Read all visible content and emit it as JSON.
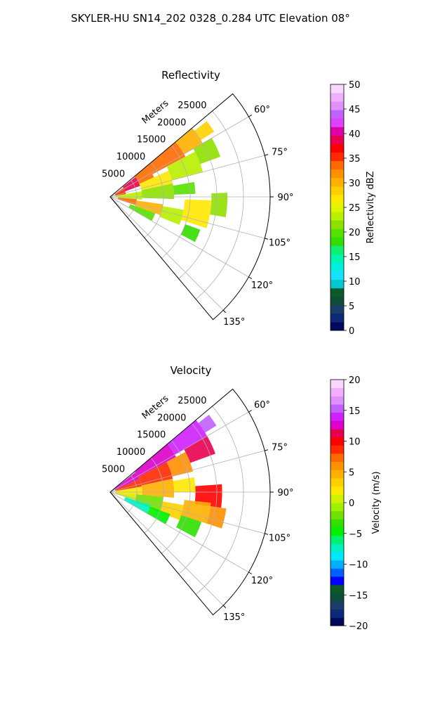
{
  "title": "SKYLER-HU  SN14_202  0328_0.284 UTC Elevation 08°",
  "chart_data": [
    {
      "type": "heatmap",
      "projection": "polar-sector",
      "title": "Reflectivity",
      "radial_label": "Meters",
      "radial_ticks": [
        "5000",
        "10000",
        "15000",
        "20000",
        "25000"
      ],
      "radial_range": [
        0,
        30000
      ],
      "angle_range_deg": [
        50,
        140
      ],
      "angle_ticks": [
        "60°",
        "75°",
        "90°",
        "105°",
        "120°",
        "135°"
      ],
      "grid": true,
      "colorbar": {
        "label": "Reflectivity dBZ",
        "range": [
          0,
          50
        ],
        "ticks": [
          "0",
          "5",
          "10",
          "15",
          "20",
          "25",
          "30",
          "35",
          "40",
          "45",
          "50"
        ],
        "colors": [
          "#000a5a",
          "#0c2a78",
          "#1a3d6a",
          "#0f4e3a",
          "#0a5a2a",
          "#00c8d0",
          "#18e0ff",
          "#00f0e0",
          "#00f5b0",
          "#10f070",
          "#33dd00",
          "#55e000",
          "#8ee000",
          "#b8f000",
          "#e2f500",
          "#ffe800",
          "#ffd000",
          "#ffb000",
          "#ff9000",
          "#ff6a00",
          "#ff2a00",
          "#ff0000",
          "#e80050",
          "#dd00aa",
          "#e040ff",
          "#c060ff",
          "#e090ff",
          "#f0b0ff",
          "#f8d8ff"
        ]
      },
      "cells": [
        {
          "range": [
            1000,
            3000
          ],
          "angle": [
            56,
            80
          ],
          "value": 36
        },
        {
          "range": [
            3000,
            6000
          ],
          "angle": [
            52,
            70
          ],
          "value": 38
        },
        {
          "range": [
            6000,
            9000
          ],
          "angle": [
            50,
            66
          ],
          "value": 34
        },
        {
          "range": [
            9000,
            12000
          ],
          "angle": [
            50,
            62
          ],
          "value": 33
        },
        {
          "range": [
            12000,
            16000
          ],
          "angle": [
            50,
            62
          ],
          "value": 34
        },
        {
          "range": [
            16000,
            20000
          ],
          "angle": [
            50,
            60
          ],
          "value": 30
        },
        {
          "range": [
            20000,
            23000
          ],
          "angle": [
            52,
            58
          ],
          "value": 28
        },
        {
          "range": [
            6000,
            12000
          ],
          "angle": [
            66,
            78
          ],
          "value": 26
        },
        {
          "range": [
            12000,
            18000
          ],
          "angle": [
            62,
            75
          ],
          "value": 24
        },
        {
          "range": [
            18000,
            22000
          ],
          "angle": [
            60,
            70
          ],
          "value": 22
        },
        {
          "range": [
            1000,
            6000
          ],
          "angle": [
            80,
            95
          ],
          "value": 24
        },
        {
          "range": [
            6000,
            12000
          ],
          "angle": [
            78,
            92
          ],
          "value": 22
        },
        {
          "range": [
            12000,
            16000
          ],
          "angle": [
            80,
            88
          ],
          "value": 20
        },
        {
          "range": [
            1500,
            5000
          ],
          "angle": [
            95,
            108
          ],
          "value": 33
        },
        {
          "range": [
            5000,
            10000
          ],
          "angle": [
            98,
            110
          ],
          "value": 30
        },
        {
          "range": [
            10000,
            14000
          ],
          "angle": [
            100,
            112
          ],
          "value": 24
        },
        {
          "range": [
            14000,
            19000
          ],
          "angle": [
            92,
            108
          ],
          "value": 26
        },
        {
          "range": [
            19000,
            22000
          ],
          "angle": [
            88,
            100
          ],
          "value": 22
        },
        {
          "range": [
            4000,
            9000
          ],
          "angle": [
            110,
            120
          ],
          "value": 20
        },
        {
          "range": [
            15000,
            18000
          ],
          "angle": [
            110,
            118
          ],
          "value": 18
        }
      ]
    },
    {
      "type": "heatmap",
      "projection": "polar-sector",
      "title": "Velocity",
      "radial_label": "Meters",
      "radial_ticks": [
        "5000",
        "10000",
        "15000",
        "20000",
        "25000"
      ],
      "radial_range": [
        0,
        30000
      ],
      "angle_range_deg": [
        50,
        140
      ],
      "angle_ticks": [
        "60°",
        "75°",
        "90°",
        "105°",
        "120°",
        "135°"
      ],
      "grid": true,
      "colorbar": {
        "label": "Velocity (m/s)",
        "range": [
          -20,
          20
        ],
        "ticks": [
          "−20",
          "−15",
          "−10",
          "−5",
          "0",
          "5",
          "10",
          "15",
          "20"
        ],
        "colors": [
          "#000a5a",
          "#0c2a78",
          "#1a3d6a",
          "#0f4e3a",
          "#0a5a2a",
          "#0000ff",
          "#0060ff",
          "#00b0ff",
          "#00e8ff",
          "#00f0c0",
          "#00f070",
          "#00f000",
          "#30e000",
          "#70e000",
          "#a0f000",
          "#d0f000",
          "#ffe800",
          "#ffd000",
          "#ffb000",
          "#ff9000",
          "#ff6a00",
          "#ff2a00",
          "#ff0000",
          "#e80050",
          "#dd00cc",
          "#d020ff",
          "#c060ff",
          "#e090ff",
          "#f0b0ff",
          "#f8d8ff"
        ]
      },
      "cells": [
        {
          "range": [
            1000,
            6000
          ],
          "angle": [
            52,
            66
          ],
          "value": 12
        },
        {
          "range": [
            6000,
            14000
          ],
          "angle": [
            50,
            62
          ],
          "value": 13
        },
        {
          "range": [
            14000,
            21000
          ],
          "angle": [
            50,
            60
          ],
          "value": 14
        },
        {
          "range": [
            21000,
            23500
          ],
          "angle": [
            52,
            58
          ],
          "value": 15
        },
        {
          "range": [
            1000,
            6000
          ],
          "angle": [
            66,
            80
          ],
          "value": 9
        },
        {
          "range": [
            6000,
            12000
          ],
          "angle": [
            62,
            78
          ],
          "value": 8
        },
        {
          "range": [
            12000,
            16000
          ],
          "angle": [
            62,
            76
          ],
          "value": 6
        },
        {
          "range": [
            16000,
            21000
          ],
          "angle": [
            60,
            70
          ],
          "value": 11
        },
        {
          "range": [
            1000,
            6000
          ],
          "angle": [
            80,
            95
          ],
          "value": 2
        },
        {
          "range": [
            6000,
            12000
          ],
          "angle": [
            78,
            95
          ],
          "value": 4
        },
        {
          "range": [
            12000,
            16000
          ],
          "angle": [
            80,
            90
          ],
          "value": 2
        },
        {
          "range": [
            16000,
            21000
          ],
          "angle": [
            86,
            98
          ],
          "value": 10
        },
        {
          "range": [
            1000,
            5000
          ],
          "angle": [
            95,
            108
          ],
          "value": 0
        },
        {
          "range": [
            5000,
            10000
          ],
          "angle": [
            95,
            112
          ],
          "value": -2
        },
        {
          "range": [
            10000,
            14000
          ],
          "angle": [
            100,
            112
          ],
          "value": 3
        },
        {
          "range": [
            14000,
            19000
          ],
          "angle": [
            96,
            108
          ],
          "value": 5
        },
        {
          "range": [
            19000,
            22000
          ],
          "angle": [
            98,
            108
          ],
          "value": 6
        },
        {
          "range": [
            3000,
            8000
          ],
          "angle": [
            108,
            120
          ],
          "value": -8
        },
        {
          "range": [
            8000,
            12000
          ],
          "angle": [
            110,
            120
          ],
          "value": -5
        },
        {
          "range": [
            14000,
            18000
          ],
          "angle": [
            108,
            118
          ],
          "value": -3
        }
      ]
    }
  ]
}
